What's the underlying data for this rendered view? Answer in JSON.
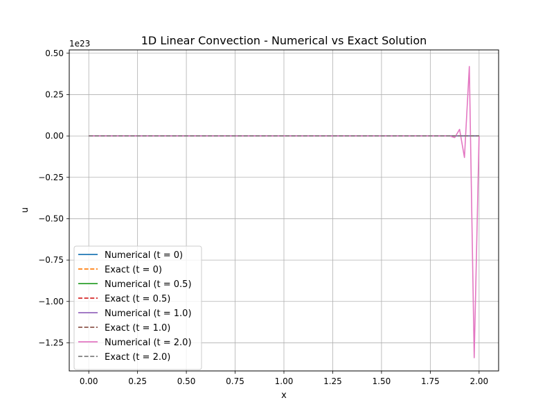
{
  "chart_data": {
    "type": "line",
    "title": "1D Linear Convection - Numerical vs Exact Solution",
    "xlabel": "x",
    "ylabel": "u",
    "y_offset_label": "1e23",
    "xlim": [
      -0.1,
      2.1
    ],
    "ylim": [
      -1.42,
      0.52
    ],
    "x_ticks": [
      0.0,
      0.25,
      0.5,
      0.75,
      1.0,
      1.25,
      1.5,
      1.75,
      2.0
    ],
    "x_tick_labels": [
      "0.00",
      "0.25",
      "0.50",
      "0.75",
      "1.00",
      "1.25",
      "1.50",
      "1.75",
      "2.00"
    ],
    "y_ticks": [
      0.5,
      0.25,
      0.0,
      -0.25,
      -0.5,
      -0.75,
      -1.0,
      -1.25
    ],
    "y_tick_labels": [
      "0.50",
      "0.25",
      "0.00",
      "−0.25",
      "−0.50",
      "−0.75",
      "−1.00",
      "−1.25"
    ],
    "y_units_note": "u values in units of 1e23",
    "grid": true,
    "legend_position": "lower-left",
    "series": [
      {
        "name": "Numerical (t = 0)",
        "color": "#1f77b4",
        "dash": "solid",
        "x": [
          0.0,
          2.0
        ],
        "y": [
          0.0,
          0.0
        ]
      },
      {
        "name": "Exact (t = 0)",
        "color": "#ff7f0e",
        "dash": "dashed",
        "x": [
          0.0,
          2.0
        ],
        "y": [
          0.0,
          0.0
        ]
      },
      {
        "name": "Numerical (t = 0.5)",
        "color": "#2ca02c",
        "dash": "solid",
        "x": [
          0.0,
          2.0
        ],
        "y": [
          0.0,
          0.0
        ]
      },
      {
        "name": "Exact (t = 0.5)",
        "color": "#d62728",
        "dash": "dashed",
        "x": [
          0.0,
          2.0
        ],
        "y": [
          0.0,
          0.0
        ]
      },
      {
        "name": "Numerical (t = 1.0)",
        "color": "#9467bd",
        "dash": "solid",
        "x": [
          0.0,
          2.0
        ],
        "y": [
          0.0,
          0.0
        ]
      },
      {
        "name": "Exact (t = 1.0)",
        "color": "#8c564b",
        "dash": "dashed",
        "x": [
          0.0,
          2.0
        ],
        "y": [
          0.0,
          0.0
        ]
      },
      {
        "name": "Numerical (t = 2.0)",
        "color": "#e377c2",
        "dash": "solid",
        "x": [
          0.0,
          1.85,
          1.875,
          1.9,
          1.925,
          1.95,
          1.975,
          2.0
        ],
        "y": [
          0.0,
          0.0,
          -0.01,
          0.04,
          -0.13,
          0.42,
          -1.34,
          0.0
        ]
      },
      {
        "name": "Exact (t = 2.0)",
        "color": "#7f7f7f",
        "dash": "dashed",
        "x": [
          0.0,
          2.0
        ],
        "y": [
          0.0,
          0.0
        ]
      }
    ]
  }
}
